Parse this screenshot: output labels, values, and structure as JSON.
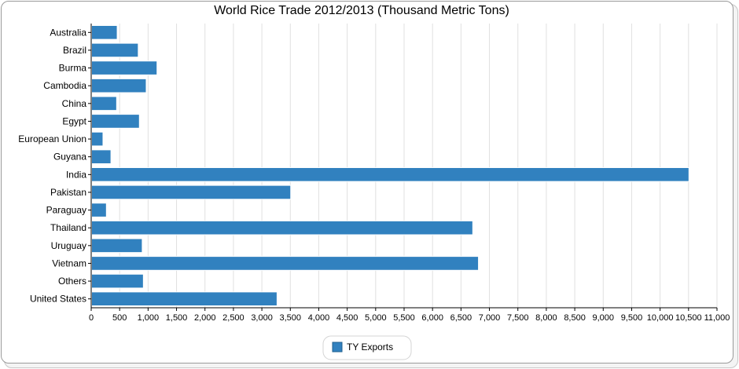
{
  "chart_data": {
    "type": "bar",
    "orientation": "horizontal",
    "title": "World Rice Trade 2012/2013 (Thousand Metric Tons)",
    "categories": [
      "Australia",
      "Brazil",
      "Burma",
      "Cambodia",
      "China",
      "Egypt",
      "European Union",
      "Guyana",
      "India",
      "Pakistan",
      "Paraguay",
      "Thailand",
      "Uruguay",
      "Vietnam",
      "Others",
      "United States"
    ],
    "series": [
      {
        "name": "TY Exports",
        "values": [
          450,
          820,
          1150,
          960,
          440,
          840,
          200,
          340,
          10500,
          3500,
          260,
          6700,
          890,
          6800,
          910,
          3260
        ]
      }
    ],
    "xlim": [
      0,
      11000
    ],
    "x_ticks": [
      0,
      500,
      1000,
      1500,
      2000,
      2500,
      3000,
      3500,
      4000,
      4500,
      5000,
      5500,
      6000,
      6500,
      7000,
      7500,
      8000,
      8500,
      9000,
      9500,
      10000,
      10500,
      11000
    ],
    "grid": true,
    "legend_position": "bottom-center",
    "colors": {
      "bar": "#3181bf",
      "bar_edge": "#ffffff",
      "grid": "#e0e0e0",
      "axis": "#000000"
    }
  }
}
